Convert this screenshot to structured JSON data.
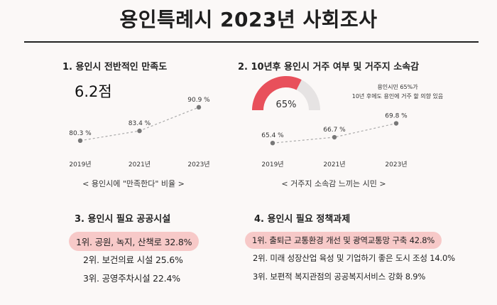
{
  "title": "용인특례시 2023년 사회조사",
  "section1": {
    "title": "1. 용인시 전반적인 만족도",
    "score": "6.2점",
    "caption": "< 용인시에 \"만족한다\" 비율 >"
  },
  "section2": {
    "title": "2. 10년후 용인시 거주 여부 및 거주지 소속감",
    "gauge_label": "65%",
    "note_line1": "용인시민 65%가",
    "note_line2": "10년 후에도 용인에 거주 할 의향 있음",
    "caption": "< 거주지 소속감 느끼는 시민 >"
  },
  "section3": {
    "title": "3. 용인시 필요 공공시설",
    "items": [
      "1위. 공원, 녹지, 산책로 32.8%",
      "2위. 보건의료 시설 25.6%",
      "3위. 공영주차시설 22.4%"
    ]
  },
  "section4": {
    "title": "4. 용인시 필요 정책과제",
    "items": [
      "1위. 출퇴근 교통환경 개선 및 광역교통망 구축 42.8%",
      "2위. 미래 성장산업 육성 및 기업하기 좋은 도시 조성 14.0%",
      "3위. 보편적 복지관점의 공공복지서비스 강화 8.9%"
    ]
  },
  "colors": {
    "accent_red": "#e8505b",
    "gauge_track": "#e6e3e3",
    "highlight": "#f7c9c8",
    "point": "#777777"
  },
  "chart_data": [
    {
      "type": "line",
      "title": "",
      "x": [
        "2019년",
        "2021년",
        "2023년"
      ],
      "series": [
        {
          "values": [
            80.3,
            83.4,
            90.9
          ]
        }
      ],
      "value_labels": [
        "80.3 %",
        "83.4 %",
        "90.9 %"
      ],
      "ylim": [
        78,
        92
      ]
    },
    {
      "type": "line",
      "title": "",
      "x": [
        "2019년",
        "2021년",
        "2023년"
      ],
      "series": [
        {
          "values": [
            65.4,
            66.7,
            69.8
          ]
        }
      ],
      "value_labels": [
        "65.4 %",
        "66.7 %",
        "69.8 %"
      ],
      "ylim": [
        64,
        71
      ]
    },
    {
      "type": "pie",
      "title": "",
      "values": [
        65,
        35
      ],
      "value_label": "65%"
    }
  ]
}
